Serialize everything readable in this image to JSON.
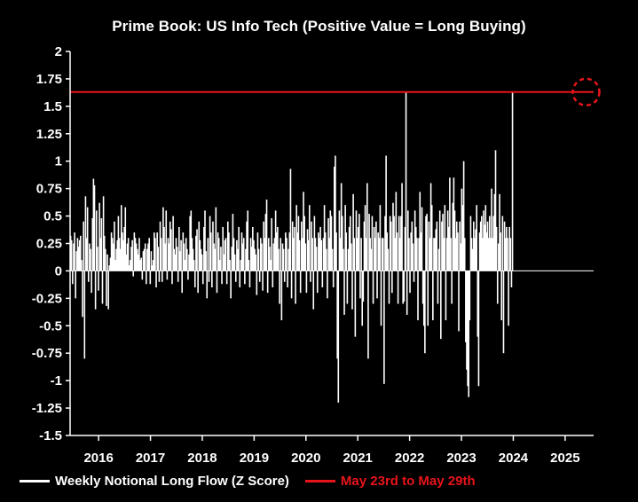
{
  "chart_data": {
    "type": "bar",
    "title": "Prime Book: US Info Tech (Positive Value = Long Buying)",
    "xlabel": "",
    "ylabel": "",
    "ylim": [
      -1.5,
      2
    ],
    "yticks": [
      2,
      1.75,
      1.5,
      1.25,
      1,
      0.75,
      0.5,
      0.25,
      0,
      -0.25,
      -0.5,
      -0.75,
      -1,
      -1.25,
      -1.5
    ],
    "ytick_labels": [
      "2",
      "1.75",
      "1.5",
      "1.25",
      "1",
      "0.75",
      "0.5",
      "0.25",
      "0",
      "-0.25",
      "-0.5",
      "-0.75",
      "-1",
      "-1.25",
      "-1.5"
    ],
    "xlim": [
      2015.45,
      2025.55
    ],
    "xticks": [
      2016,
      2017,
      2018,
      2019,
      2020,
      2021,
      2022,
      2023,
      2024,
      2025
    ],
    "xtick_labels": [
      "2016",
      "2017",
      "2018",
      "2019",
      "2020",
      "2021",
      "2022",
      "2023",
      "2024",
      "2025"
    ],
    "reference_line": {
      "y": 1.63,
      "label": "May 23rd to May 29th",
      "color": "#e8141b"
    },
    "highlight_circle": {
      "x": 2025.37,
      "y": 1.63,
      "color": "#e8141b"
    },
    "legend_position": "bottom-left",
    "series": [
      {
        "name": "Weekly Notional Long Flow (Z Score)",
        "color": "#ffffff",
        "x_start": 2015.46,
        "x_step": 0.0192,
        "note_x": "weekly bars; x = x_start + i * x_step",
        "values": [
          0.32,
          0.28,
          -0.12,
          0.25,
          0.35,
          -0.25,
          0.18,
          0.3,
          0.22,
          0.28,
          0.32,
          0.1,
          -0.42,
          0.45,
          -0.8,
          0.68,
          0.3,
          0.58,
          -0.1,
          0.25,
          0.2,
          -0.2,
          0.48,
          0.84,
          0.78,
          -0.35,
          0.55,
          0.22,
          -0.18,
          0.62,
          0.3,
          0.48,
          -0.3,
          0.68,
          0.32,
          0.2,
          -0.32,
          0.15,
          -0.35,
          0.05,
          0.12,
          0.35,
          0.3,
          0.25,
          0.45,
          0.1,
          0.2,
          0.28,
          0.5,
          0.3,
          0.2,
          0.6,
          0.35,
          0.28,
          0.4,
          0.58,
          0.15,
          0.25,
          0.3,
          0.05,
          0.1,
          0.22,
          0.28,
          -0.05,
          0.35,
          0.3,
          0.25,
          0.2,
          0.15,
          0.3,
          0.1,
          0.12,
          -0.08,
          0.18,
          0.2,
          0.25,
          -0.12,
          0.2,
          0.25,
          0.3,
          -0.12,
          0.18,
          0.05,
          0.1,
          0.35,
          0.3,
          -0.15,
          0.35,
          0.22,
          -0.1,
          0.45,
          0.3,
          -0.1,
          0.58,
          0.4,
          0.25,
          0.55,
          -0.08,
          0.3,
          0.25,
          0.45,
          0.38,
          -0.12,
          0.5,
          0.2,
          0.15,
          0.3,
          0.22,
          -0.1,
          0.4,
          0.18,
          0.28,
          -0.2,
          0.35,
          0.25,
          0.1,
          0.3,
          0.2,
          -0.08,
          0.15,
          0.5,
          0.55,
          0.3,
          0.2,
          0.1,
          -0.15,
          0.32,
          0.38,
          -0.2,
          0.45,
          0.28,
          0.2,
          0.15,
          -0.12,
          0.4,
          0.55,
          0.18,
          -0.25,
          0.3,
          -0.1,
          0.5,
          0.35,
          -0.15,
          0.45,
          0.25,
          0.2,
          0.58,
          -0.2,
          0.35,
          0.3,
          0.1,
          0.22,
          -0.12,
          0.4,
          0.15,
          0.28,
          0.3,
          -0.12,
          0.45,
          0.35,
          0.1,
          -0.25,
          0.22,
          0.52,
          0.3,
          0.15,
          -0.1,
          0.28,
          0.2,
          0.4,
          -0.15,
          0.1,
          0.35,
          0.25,
          0.3,
          -0.12,
          0.2,
          0.45,
          0.55,
          0.1,
          -0.15,
          0.3,
          0.22,
          0.4,
          0.28,
          0.2,
          0.15,
          -0.22,
          0.35,
          0.2,
          -0.1,
          0.3,
          0.25,
          -0.18,
          0.45,
          0.3,
          0.52,
          0.65,
          -0.2,
          0.3,
          0.22,
          0.1,
          0.48,
          -0.15,
          0.25,
          0.3,
          0.55,
          0.35,
          0.4,
          0.2,
          -0.3,
          0.3,
          -0.45,
          0.25,
          0.2,
          -0.1,
          0.35,
          0.3,
          -0.15,
          0.2,
          0.35,
          0.93,
          -0.25,
          0.45,
          0.3,
          0.4,
          -0.3,
          0.6,
          0.35,
          0.5,
          0.28,
          -0.2,
          0.45,
          0.3,
          0.72,
          0.5,
          0.25,
          -0.2,
          0.38,
          0.28,
          0.6,
          -0.1,
          0.45,
          0.3,
          -0.35,
          0.5,
          0.3,
          0.22,
          -0.2,
          0.35,
          0.3,
          0.4,
          0.28,
          -0.15,
          0.3,
          0.6,
          0.35,
          0.2,
          -0.25,
          0.48,
          0.3,
          0.55,
          0.5,
          0.2,
          -0.15,
          0.95,
          1.05,
          0.35,
          -0.8,
          -1.2,
          0.55,
          0.3,
          0.8,
          0.5,
          0.2,
          -0.4,
          0.6,
          0.35,
          -0.3,
          0.2,
          0.4,
          0.5,
          0.25,
          -0.35,
          0.7,
          0.3,
          -0.6,
          0.55,
          0.3,
          0.4,
          0.52,
          -0.25,
          0.3,
          -0.5,
          -0.28,
          0.45,
          0.6,
          0.3,
          0.8,
          -0.8,
          0.52,
          0.3,
          0.2,
          0.5,
          -0.3,
          0.4,
          0.3,
          0.45,
          -0.25,
          0.35,
          0.3,
          0.6,
          -0.5,
          0.3,
          0.3,
          -1.03,
          0.5,
          1.05,
          0.35,
          0.2,
          -0.3,
          0.5,
          0.45,
          -0.2,
          0.62,
          0.5,
          0.3,
          0.72,
          0.35,
          -0.3,
          0.5,
          0.3,
          0.5,
          0.8,
          -0.3,
          -0.28,
          0.4,
          1.63,
          -0.4,
          0.55,
          0.3,
          -0.2,
          0.35,
          0.45,
          0.25,
          -0.1,
          0.55,
          0.4,
          0.3,
          -0.45,
          0.3,
          0.72,
          0.35,
          0.58,
          -0.3,
          -0.5,
          -0.75,
          0.5,
          0.52,
          -0.5,
          0.45,
          0.3,
          0.8,
          0.6,
          -0.45,
          0.3,
          0.3,
          0.38,
          0.45,
          -0.3,
          0.2,
          0.55,
          -0.62,
          0.45,
          0.52,
          0.3,
          0.6,
          -0.45,
          0.3,
          0.55,
          0.4,
          0.85,
          0.3,
          -0.3,
          0.62,
          0.85,
          0.55,
          0.3,
          0.45,
          0.35,
          -0.55,
          0.45,
          0.25,
          0.75,
          0.6,
          1.0,
          0.3,
          -0.65,
          -0.9,
          -1.05,
          -1.15,
          -0.45,
          0.5,
          0.3,
          0.2,
          0.45,
          0.3,
          0.38,
          0.6,
          -0.6,
          -1.05,
          0.35,
          0.45,
          0.5,
          0.3,
          0.55,
          0.42,
          0.6,
          0.35,
          0.45,
          0.3,
          0.5,
          0.3,
          0.75,
          0.3,
          0.5,
          0.7,
          1.1,
          0.4,
          -0.3,
          0.25,
          0.7,
          0.35,
          -0.45,
          0.5,
          -0.75,
          0.45,
          0.3,
          0.4,
          0.3,
          -0.5,
          0.4,
          0.3,
          -0.15,
          1.63
        ]
      },
      {
        "name": "May 23rd to May 29th",
        "color": "#e8141b"
      }
    ]
  }
}
